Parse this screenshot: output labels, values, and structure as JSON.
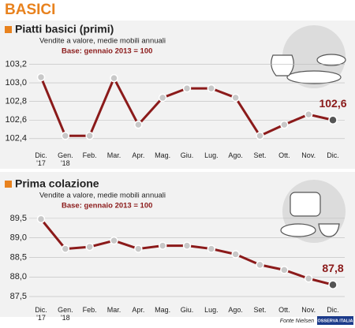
{
  "title": "BASICI",
  "source": "Fonte Nielsen",
  "logo": "OSSERVA ITALIA",
  "chart_data": [
    {
      "type": "line",
      "title": "Piatti basici (primi)",
      "subtitle": "Vendite a valore, medie mobili annuali",
      "note": "Base: gennaio 2013 = 100",
      "categories": [
        "Dic.\n'17",
        "Gen.\n'18",
        "Feb.",
        "Mar.",
        "Apr.",
        "Mag.",
        "Giu.",
        "Lug.",
        "Ago.",
        "Set.",
        "Ott.",
        "Nov.",
        "Dic."
      ],
      "values": [
        103.06,
        102.43,
        102.43,
        103.05,
        102.55,
        102.84,
        102.94,
        102.94,
        102.84,
        102.43,
        102.55,
        102.66,
        102.6
      ],
      "value_labels": [
        null,
        null,
        null,
        null,
        null,
        null,
        null,
        null,
        null,
        null,
        null,
        null,
        "102,6"
      ],
      "color": "#8b1a1a",
      "marker_color": "#c8c8c8",
      "ylim": [
        102.28,
        103.28
      ],
      "yticks": [
        {
          "value": 102.4,
          "label": "102,4"
        },
        {
          "value": 102.6,
          "label": "102,6"
        },
        {
          "value": 102.8,
          "label": "102,8"
        },
        {
          "value": 103.0,
          "label": "103,0"
        },
        {
          "value": 103.2,
          "label": "103,2"
        }
      ],
      "grid": true
    },
    {
      "type": "line",
      "title": "Prima colazione",
      "subtitle": "Vendite a valore, medie mobili annuali",
      "note": "Base: gennaio 2013 = 100",
      "categories": [
        "Dic.\n'17",
        "Gen.\n'18",
        "Feb.",
        "Mar.",
        "Apr.",
        "Mag.",
        "Giu.",
        "Lug.",
        "Ago.",
        "Set.",
        "Ott.",
        "Nov.",
        "Dic."
      ],
      "values": [
        89.48,
        88.72,
        88.77,
        88.93,
        88.72,
        88.8,
        88.8,
        88.72,
        88.58,
        88.31,
        88.18,
        87.96,
        87.8
      ],
      "value_labels": [
        null,
        null,
        null,
        null,
        null,
        null,
        null,
        null,
        null,
        null,
        null,
        null,
        "87,8"
      ],
      "color": "#8b1a1a",
      "marker_color": "#c8c8c8",
      "ylim": [
        87.3,
        89.8
      ],
      "yticks": [
        {
          "value": 87.5,
          "label": "87,5"
        },
        {
          "value": 88.0,
          "label": "88,0"
        },
        {
          "value": 88.5,
          "label": "88,5"
        },
        {
          "value": 89.0,
          "label": "89,0"
        },
        {
          "value": 89.5,
          "label": "89,5"
        }
      ],
      "grid": true
    }
  ]
}
